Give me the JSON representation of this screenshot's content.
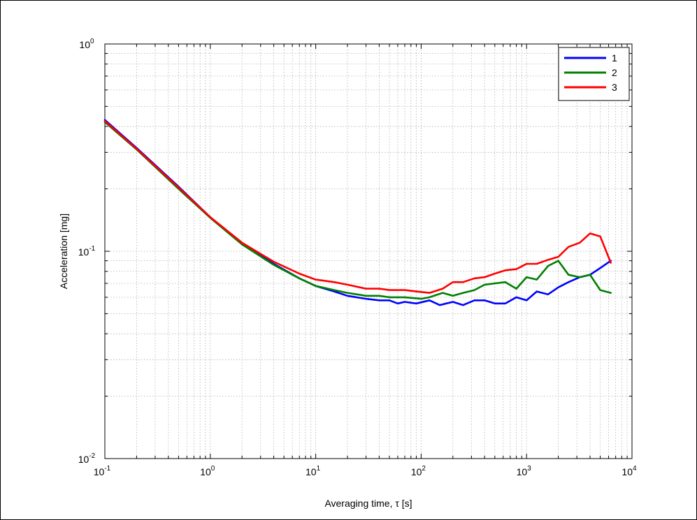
{
  "chart_data": {
    "type": "line",
    "x_scale": "log",
    "y_scale": "log",
    "xlim": [
      0.1,
      10000
    ],
    "ylim": [
      0.01,
      1
    ],
    "xlabel": "Averaging time, τ [s]",
    "ylabel": "Acceleration [mg]",
    "title": "",
    "grid": true,
    "legend_position": "top-right",
    "x_ticks": [
      {
        "base": "10",
        "exp": "-1",
        "value": 0.1
      },
      {
        "base": "10",
        "exp": "0",
        "value": 1
      },
      {
        "base": "10",
        "exp": "1",
        "value": 10
      },
      {
        "base": "10",
        "exp": "2",
        "value": 100
      },
      {
        "base": "10",
        "exp": "3",
        "value": 1000
      },
      {
        "base": "10",
        "exp": "4",
        "value": 10000
      }
    ],
    "y_ticks": [
      {
        "base": "10",
        "exp": "-2",
        "value": 0.01
      },
      {
        "base": "10",
        "exp": "-1",
        "value": 0.1
      },
      {
        "base": "10",
        "exp": "0",
        "value": 1
      }
    ],
    "series": [
      {
        "name": "1",
        "color": "#0000ff",
        "points": [
          [
            0.1,
            0.43
          ],
          [
            0.2,
            0.315
          ],
          [
            0.5,
            0.205
          ],
          [
            1,
            0.146
          ],
          [
            2,
            0.109
          ],
          [
            4,
            0.087
          ],
          [
            7,
            0.074
          ],
          [
            10,
            0.068
          ],
          [
            15,
            0.064
          ],
          [
            20,
            0.061
          ],
          [
            30,
            0.059
          ],
          [
            40,
            0.058
          ],
          [
            50,
            0.058
          ],
          [
            60,
            0.056
          ],
          [
            70,
            0.057
          ],
          [
            90,
            0.056
          ],
          [
            120,
            0.058
          ],
          [
            150,
            0.055
          ],
          [
            200,
            0.057
          ],
          [
            250,
            0.055
          ],
          [
            320,
            0.058
          ],
          [
            400,
            0.058
          ],
          [
            500,
            0.056
          ],
          [
            630,
            0.056
          ],
          [
            800,
            0.06
          ],
          [
            1000,
            0.058
          ],
          [
            1250,
            0.064
          ],
          [
            1600,
            0.062
          ],
          [
            2000,
            0.067
          ],
          [
            2500,
            0.071
          ],
          [
            3200,
            0.075
          ],
          [
            4000,
            0.077
          ],
          [
            5000,
            0.083
          ],
          [
            6300,
            0.09
          ]
        ]
      },
      {
        "name": "2",
        "color": "#008000",
        "points": [
          [
            0.1,
            0.42
          ],
          [
            0.2,
            0.31
          ],
          [
            0.5,
            0.2
          ],
          [
            1,
            0.145
          ],
          [
            2,
            0.108
          ],
          [
            4,
            0.086
          ],
          [
            7,
            0.074
          ],
          [
            10,
            0.068
          ],
          [
            15,
            0.065
          ],
          [
            20,
            0.063
          ],
          [
            30,
            0.061
          ],
          [
            40,
            0.061
          ],
          [
            50,
            0.06
          ],
          [
            70,
            0.06
          ],
          [
            100,
            0.059
          ],
          [
            120,
            0.06
          ],
          [
            160,
            0.063
          ],
          [
            200,
            0.061
          ],
          [
            250,
            0.063
          ],
          [
            320,
            0.065
          ],
          [
            400,
            0.069
          ],
          [
            500,
            0.07
          ],
          [
            630,
            0.071
          ],
          [
            800,
            0.066
          ],
          [
            1000,
            0.075
          ],
          [
            1250,
            0.073
          ],
          [
            1600,
            0.085
          ],
          [
            2000,
            0.09
          ],
          [
            2500,
            0.077
          ],
          [
            3200,
            0.075
          ],
          [
            4000,
            0.077
          ],
          [
            5000,
            0.065
          ],
          [
            6300,
            0.063
          ]
        ]
      },
      {
        "name": "3",
        "color": "#ff0000",
        "points": [
          [
            0.1,
            0.425
          ],
          [
            0.2,
            0.312
          ],
          [
            0.5,
            0.203
          ],
          [
            1,
            0.146
          ],
          [
            2,
            0.11
          ],
          [
            4,
            0.089
          ],
          [
            7,
            0.078
          ],
          [
            10,
            0.073
          ],
          [
            15,
            0.071
          ],
          [
            20,
            0.069
          ],
          [
            30,
            0.066
          ],
          [
            40,
            0.066
          ],
          [
            50,
            0.065
          ],
          [
            70,
            0.065
          ],
          [
            90,
            0.064
          ],
          [
            120,
            0.063
          ],
          [
            160,
            0.066
          ],
          [
            200,
            0.071
          ],
          [
            250,
            0.071
          ],
          [
            320,
            0.074
          ],
          [
            400,
            0.075
          ],
          [
            500,
            0.078
          ],
          [
            630,
            0.081
          ],
          [
            800,
            0.082
          ],
          [
            1000,
            0.087
          ],
          [
            1250,
            0.087
          ],
          [
            1600,
            0.091
          ],
          [
            2000,
            0.094
          ],
          [
            2500,
            0.105
          ],
          [
            3200,
            0.11
          ],
          [
            4000,
            0.122
          ],
          [
            5000,
            0.118
          ],
          [
            6300,
            0.088
          ]
        ]
      }
    ]
  }
}
